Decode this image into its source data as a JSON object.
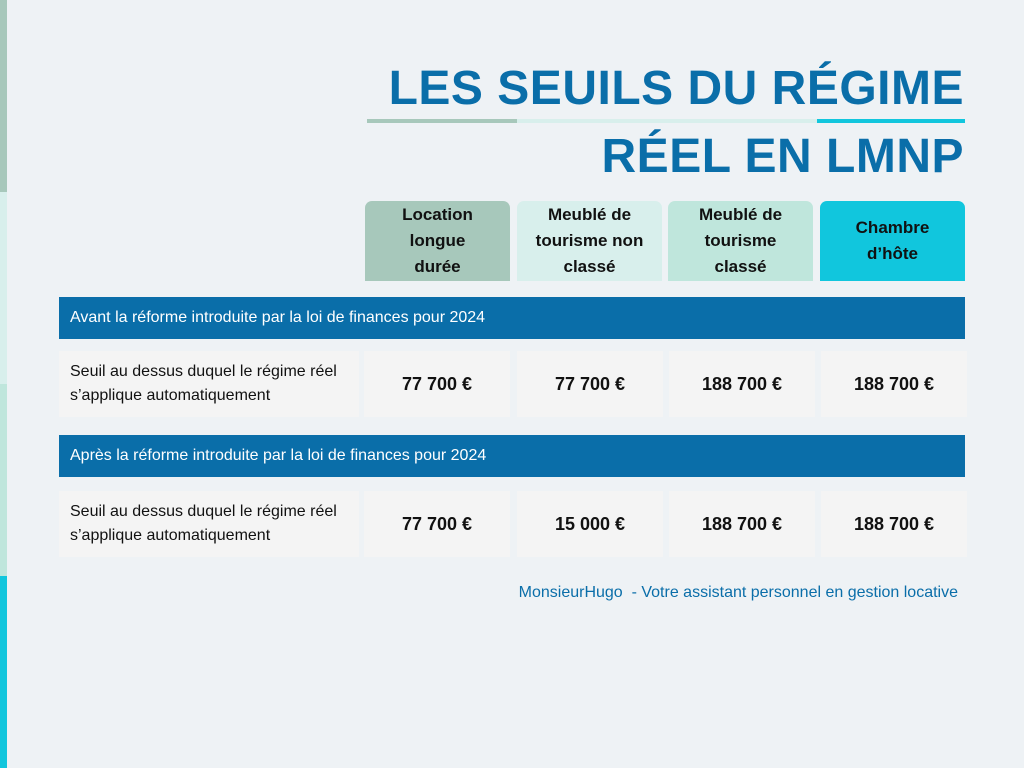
{
  "title": {
    "line1": "LES SEUILS DU RÉGIME",
    "line2": "RÉEL EN LMNP"
  },
  "columns": [
    {
      "label": "Location longue durée",
      "color": "#a7c8bb"
    },
    {
      "label": "Meublé de tourisme non classé",
      "color": "#d8efec"
    },
    {
      "label": "Meublé de tourisme classé",
      "color": "#bfe6dc"
    },
    {
      "label": "Chambre d’hôte",
      "color": "#11c6dd"
    }
  ],
  "sections": [
    {
      "heading": "Avant la réforme introduite par la loi de finances pour 2024",
      "row_label": "Seuil au dessus duquel le régime réel s’applique automatiquement",
      "values": [
        "77 700 €",
        "77 700 €",
        "188 700 €",
        "188 700 €"
      ]
    },
    {
      "heading": "Après la réforme introduite par la loi de finances pour 2024",
      "row_label": "Seuil au dessus duquel le régime réel s’applique automatiquement",
      "values": [
        "77 700 €",
        "15 000 €",
        "188 700 €",
        "188 700 €"
      ]
    }
  ],
  "footer": "MonsieurHugo  - Votre assistant personnel en gestion locative",
  "colors": {
    "brand_blue": "#0a6ea9",
    "background": "#eef2f5",
    "cell": "#f4f4f4"
  }
}
